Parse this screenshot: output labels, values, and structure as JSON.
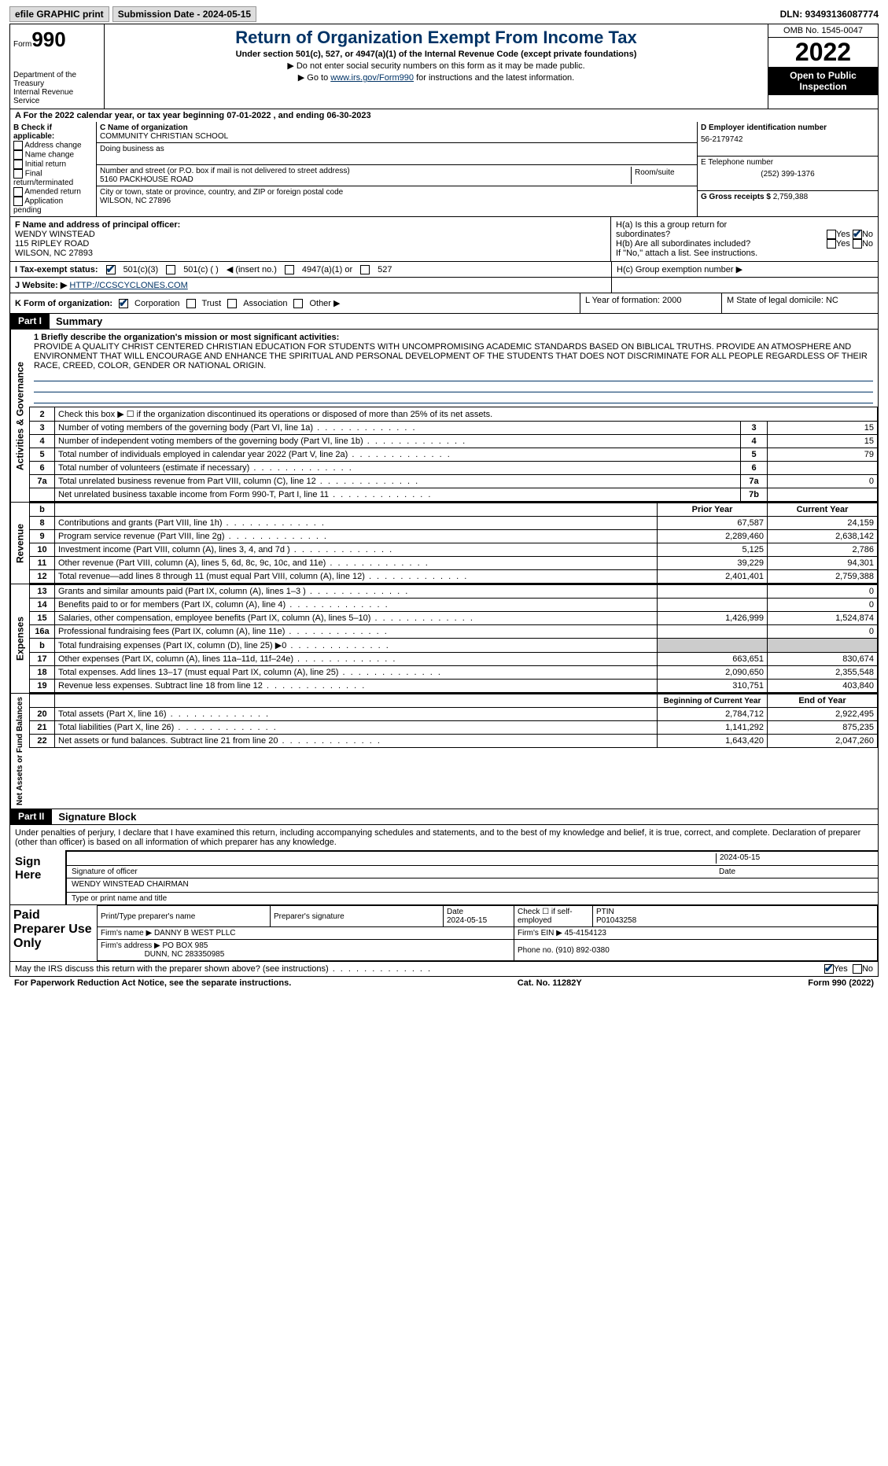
{
  "top": {
    "efile": "efile GRAPHIC print",
    "submission": "Submission Date - 2024-05-15",
    "dln": "DLN: 93493136087774"
  },
  "header": {
    "form": "Form",
    "form_num": "990",
    "dept": "Department of the Treasury",
    "irs": "Internal Revenue Service",
    "title": "Return of Organization Exempt From Income Tax",
    "subtitle": "Under section 501(c), 527, or 4947(a)(1) of the Internal Revenue Code (except private foundations)",
    "note1": "▶ Do not enter social security numbers on this form as it may be made public.",
    "note2_pre": "▶ Go to ",
    "note2_link": "www.irs.gov/Form990",
    "note2_post": " for instructions and the latest information.",
    "omb": "OMB No. 1545-0047",
    "year": "2022",
    "inspection": "Open to Public Inspection"
  },
  "rowA": "A  For the 2022 calendar year, or tax year beginning 07-01-2022    , and ending 06-30-2023",
  "sectionB": {
    "b_title": "B Check if applicable:",
    "b_items": [
      "Address change",
      "Name change",
      "Initial return",
      "Final return/terminated",
      "Amended return",
      "Application pending"
    ],
    "c_name_lbl": "C Name of organization",
    "c_name": "COMMUNITY CHRISTIAN SCHOOL",
    "dba_lbl": "Doing business as",
    "street_lbl": "Number and street (or P.O. box if mail is not delivered to street address)",
    "street": "5160 PACKHOUSE ROAD",
    "room_lbl": "Room/suite",
    "city_lbl": "City or town, state or province, country, and ZIP or foreign postal code",
    "city": "WILSON, NC  27896",
    "d_lbl": "D Employer identification number",
    "d_val": "56-2179742",
    "e_lbl": "E Telephone number",
    "e_val": "(252) 399-1376",
    "g_lbl": "G Gross receipts $",
    "g_val": "2,759,388"
  },
  "sectionF": {
    "f_lbl": "F Name and address of principal officer:",
    "name": "WENDY WINSTEAD",
    "addr1": "115 RIPLEY ROAD",
    "addr2": "WILSON, NC  27893",
    "ha": "H(a)  Is this a group return for",
    "ha2": "subordinates?",
    "hb": "H(b)  Are all subordinates included?",
    "hb_note": "If \"No,\" attach a list. See instructions.",
    "yes": "Yes",
    "no": "No"
  },
  "rowI": {
    "label": "I    Tax-exempt status:",
    "opt1": "501(c)(3)",
    "opt2": "501(c) (  )",
    "insert": "◀ (insert no.)",
    "opt3": "4947(a)(1) or",
    "opt4": "527",
    "hc": "H(c)  Group exemption number ▶"
  },
  "rowJ": {
    "label": "J    Website: ▶",
    "url": "HTTP://CCSCYCLONES.COM"
  },
  "rowK": {
    "label": "K Form of organization:",
    "corp": "Corporation",
    "trust": "Trust",
    "assoc": "Association",
    "other": "Other ▶",
    "l": "L Year of formation: 2000",
    "m": "M State of legal domicile: NC"
  },
  "part1": {
    "label": "Part I",
    "title": "Summary"
  },
  "mission": {
    "line1_lbl": "1  Briefly describe the organization's mission or most significant activities:",
    "text": "PROVIDE A QUALITY CHRIST CENTERED CHRISTIAN EDUCATION FOR STUDENTS WITH UNCOMPROMISING ACADEMIC STANDARDS BASED ON BIBLICAL TRUTHS. PROVIDE AN ATMOSPHERE AND ENVIRONMENT THAT WILL ENCOURAGE AND ENHANCE THE SPIRITUAL AND PERSONAL DEVELOPMENT OF THE STUDENTS THAT DOES NOT DISCRIMINATE FOR ALL PEOPLE REGARDLESS OF THEIR RACE, CREED, COLOR, GENDER OR NATIONAL ORIGIN."
  },
  "gov_lines": {
    "l2": "Check this box ▶ ☐  if the organization discontinued its operations or disposed of more than 25% of its net assets.",
    "l3": "Number of voting members of the governing body (Part VI, line 1a)",
    "l4": "Number of independent voting members of the governing body (Part VI, line 1b)",
    "l5": "Total number of individuals employed in calendar year 2022 (Part V, line 2a)",
    "l6": "Total number of volunteers (estimate if necessary)",
    "l7a": "Total unrelated business revenue from Part VIII, column (C), line 12",
    "l7b": "Net unrelated business taxable income from Form 990-T, Part I, line 11",
    "v3": "15",
    "v4": "15",
    "v5": "79",
    "v6": "",
    "v7a": "0",
    "v7b": ""
  },
  "rev_header": {
    "b": "b",
    "prior": "Prior Year",
    "current": "Current Year"
  },
  "rev": [
    {
      "n": "8",
      "lbl": "Contributions and grants (Part VIII, line 1h)",
      "p": "67,587",
      "c": "24,159"
    },
    {
      "n": "9",
      "lbl": "Program service revenue (Part VIII, line 2g)",
      "p": "2,289,460",
      "c": "2,638,142"
    },
    {
      "n": "10",
      "lbl": "Investment income (Part VIII, column (A), lines 3, 4, and 7d )",
      "p": "5,125",
      "c": "2,786"
    },
    {
      "n": "11",
      "lbl": "Other revenue (Part VIII, column (A), lines 5, 6d, 8c, 9c, 10c, and 11e)",
      "p": "39,229",
      "c": "94,301"
    },
    {
      "n": "12",
      "lbl": "Total revenue—add lines 8 through 11 (must equal Part VIII, column (A), line 12)",
      "p": "2,401,401",
      "c": "2,759,388"
    }
  ],
  "exp": [
    {
      "n": "13",
      "lbl": "Grants and similar amounts paid (Part IX, column (A), lines 1–3 )",
      "p": "",
      "c": "0"
    },
    {
      "n": "14",
      "lbl": "Benefits paid to or for members (Part IX, column (A), line 4)",
      "p": "",
      "c": "0"
    },
    {
      "n": "15",
      "lbl": "Salaries, other compensation, employee benefits (Part IX, column (A), lines 5–10)",
      "p": "1,426,999",
      "c": "1,524,874"
    },
    {
      "n": "16a",
      "lbl": "Professional fundraising fees (Part IX, column (A), line 11e)",
      "p": "",
      "c": "0"
    },
    {
      "n": "b",
      "lbl": "Total fundraising expenses (Part IX, column (D), line 25) ▶0",
      "p": "gray",
      "c": "gray"
    },
    {
      "n": "17",
      "lbl": "Other expenses (Part IX, column (A), lines 11a–11d, 11f–24e)",
      "p": "663,651",
      "c": "830,674"
    },
    {
      "n": "18",
      "lbl": "Total expenses. Add lines 13–17 (must equal Part IX, column (A), line 25)",
      "p": "2,090,650",
      "c": "2,355,548"
    },
    {
      "n": "19",
      "lbl": "Revenue less expenses. Subtract line 18 from line 12",
      "p": "310,751",
      "c": "403,840"
    }
  ],
  "net_header": {
    "beg": "Beginning of Current Year",
    "end": "End of Year"
  },
  "net": [
    {
      "n": "20",
      "lbl": "Total assets (Part X, line 16)",
      "p": "2,784,712",
      "c": "2,922,495"
    },
    {
      "n": "21",
      "lbl": "Total liabilities (Part X, line 26)",
      "p": "1,141,292",
      "c": "875,235"
    },
    {
      "n": "22",
      "lbl": "Net assets or fund balances. Subtract line 21 from line 20",
      "p": "1,643,420",
      "c": "2,047,260"
    }
  ],
  "part2": {
    "label": "Part II",
    "title": "Signature Block"
  },
  "sig": {
    "decl": "Under penalties of perjury, I declare that I have examined this return, including accompanying schedules and statements, and to the best of my knowledge and belief, it is true, correct, and complete. Declaration of preparer (other than officer) is based on all information of which preparer has any knowledge.",
    "sign_here": "Sign Here",
    "sig_officer": "Signature of officer",
    "date": "Date",
    "date_val": "2024-05-15",
    "name": "WENDY WINSTEAD  CHAIRMAN",
    "name_lbl": "Type or print name and title"
  },
  "prep": {
    "title": "Paid Preparer Use Only",
    "h1": "Print/Type preparer's name",
    "h2": "Preparer's signature",
    "h3": "Date",
    "h3v": "2024-05-15",
    "h4": "Check ☐ if self-employed",
    "h5": "PTIN",
    "h5v": "P01043258",
    "firm_lbl": "Firm's name    ▶",
    "firm": "DANNY B WEST PLLC",
    "ein_lbl": "Firm's EIN ▶",
    "ein": "45-4154123",
    "addr_lbl": "Firm's address ▶",
    "addr": "PO BOX 985",
    "addr2": "DUNN, NC  283350985",
    "phone_lbl": "Phone no.",
    "phone": "(910) 892-0380"
  },
  "footer": {
    "discuss": "May the IRS discuss this return with the preparer shown above? (see instructions)",
    "yes": "Yes",
    "no": "No",
    "paperwork": "For Paperwork Reduction Act Notice, see the separate instructions.",
    "cat": "Cat. No. 11282Y",
    "form": "Form 990 (2022)"
  },
  "vert": {
    "gov": "Activities & Governance",
    "rev": "Revenue",
    "exp": "Expenses",
    "net": "Net Assets or Fund Balances"
  }
}
